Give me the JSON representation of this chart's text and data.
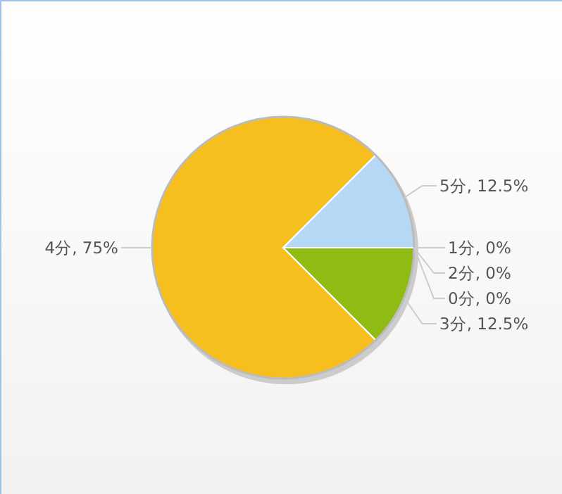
{
  "chart_data": {
    "type": "pie",
    "categories": [
      "3分, 12.5%",
      "4分, 75%",
      "5分, 12.5%",
      "1分, 0%",
      "2分, 0%",
      "0分, 0%"
    ],
    "values": [
      12.5,
      75,
      12.5,
      0,
      0,
      0
    ],
    "colors": [
      "#8fbc13",
      "#f7bf1e",
      "#b5d9f5",
      "#e0605a",
      "#6f9fd8",
      "#a080c0"
    ]
  }
}
